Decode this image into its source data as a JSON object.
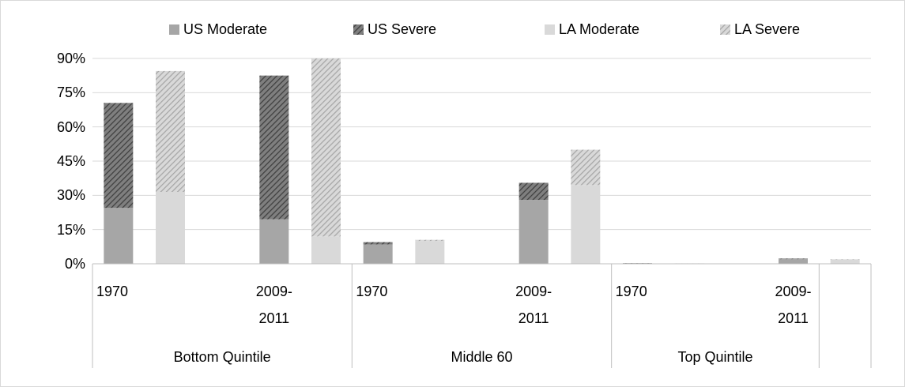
{
  "chart_data": {
    "type": "stacked-bar",
    "groups": [
      {
        "label": "Bottom Quintile",
        "subgroups": [
          {
            "label": "1970",
            "categories": [
              null,
              null,
              null
            ]
          },
          {
            "label": "2009-2011",
            "categories": [
              null,
              null
            ]
          }
        ]
      },
      {
        "label": "Middle 60",
        "subgroups": [
          {
            "label": "1970",
            "categories": [
              null,
              null,
              null
            ]
          },
          {
            "label": "2009-2011",
            "categories": [
              null,
              null
            ]
          }
        ]
      },
      {
        "label": "Top Quintile",
        "subgroups": [
          {
            "label": "1970",
            "categories": [
              null,
              null,
              null
            ]
          },
          {
            "label": "2009-2011",
            "categories": [
              null
            ]
          }
        ]
      },
      {
        "label": null,
        "subgroups": [
          {
            "label": null,
            "categories": [
              null
            ]
          }
        ]
      }
    ],
    "series": [
      {
        "name": "US Moderate",
        "color": "#a6a6a6",
        "stack": "US",
        "values": [
          24.5,
          null,
          null,
          19.5,
          null,
          8.5,
          null,
          null,
          28,
          null,
          0.2,
          null,
          null,
          2,
          null
        ]
      },
      {
        "name": "US Severe",
        "color": "#7f7f7f",
        "pattern": "diagonal",
        "pattern_color": "#3f3f3f",
        "stack": "US",
        "values": [
          46,
          null,
          null,
          63,
          null,
          1,
          null,
          null,
          7.5,
          null,
          0.1,
          null,
          null,
          0.3,
          null
        ]
      },
      {
        "name": "LA Moderate",
        "color": "#d9d9d9",
        "stack": "LA",
        "values": [
          null,
          31.5,
          null,
          null,
          12,
          null,
          10,
          null,
          null,
          34.5,
          null,
          0.1,
          null,
          null,
          1.8
        ]
      },
      {
        "name": "LA Severe",
        "color": "#d9d9d9",
        "pattern": "diagonal",
        "pattern_color": "#a6a6a6",
        "stack": "LA",
        "values": [
          null,
          53,
          null,
          null,
          78,
          null,
          0.5,
          null,
          null,
          15.5,
          null,
          0.1,
          null,
          null,
          0.2
        ]
      }
    ],
    "ylim": [
      0,
      90
    ],
    "yticks": [
      {
        "value": 0,
        "label": "0%"
      },
      {
        "value": 15,
        "label": "15%"
      },
      {
        "value": 30,
        "label": "30%"
      },
      {
        "value": 45,
        "label": "45%"
      },
      {
        "value": 60,
        "label": "60%"
      },
      {
        "value": 75,
        "label": "75%"
      },
      {
        "value": 90,
        "label": "90%"
      }
    ],
    "grid": true,
    "legend": "top"
  }
}
